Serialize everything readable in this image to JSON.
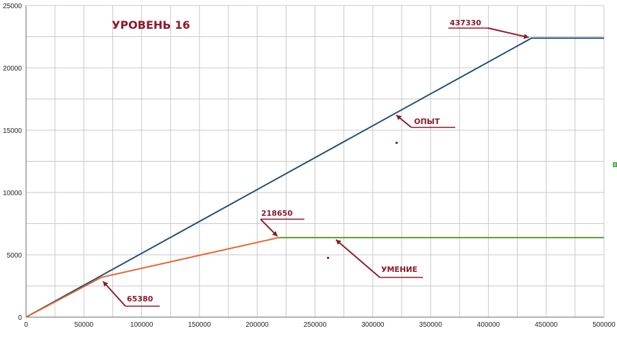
{
  "chart_data": {
    "type": "line",
    "title": "УРОВЕНЬ 16",
    "xlim": [
      0,
      500000
    ],
    "ylim": [
      0,
      25000
    ],
    "x_ticks": [
      0,
      50000,
      100000,
      150000,
      200000,
      250000,
      300000,
      350000,
      400000,
      450000,
      500000
    ],
    "y_ticks": [
      0,
      5000,
      10000,
      15000,
      20000,
      25000
    ],
    "x_tick_labels": [
      "0",
      "50000",
      "100000",
      "150000",
      "200000",
      "250000",
      "300000",
      "350000",
      "400000",
      "450000",
      "500000"
    ],
    "y_tick_labels": [
      "0",
      "5000",
      "10000",
      "15000",
      "20000",
      "25000"
    ],
    "grid": true,
    "series": [
      {
        "name": "ОПЫТ",
        "color": "#1f4e79",
        "x": [
          0,
          437330,
          500000
        ],
        "y": [
          0,
          22380,
          22380
        ]
      },
      {
        "name": "УМЕНИЕ",
        "color": "#e8632b",
        "x": [
          0,
          65380,
          218650
        ],
        "y": [
          0,
          3200,
          6380
        ]
      },
      {
        "name": "",
        "color": "#5a9a2e",
        "x": [
          218650,
          500000
        ],
        "y": [
          6380,
          6380
        ]
      }
    ],
    "annotations": [
      {
        "text": "437330",
        "x": 437330,
        "y": 22380
      },
      {
        "text": "218650",
        "x": 218650,
        "y": 6380
      },
      {
        "text": "65380",
        "x": 65380,
        "y": 3200
      },
      {
        "text": "ОПЫТ",
        "x": 320000,
        "y": 16200
      },
      {
        "text": "УМЕНИЕ",
        "x": 270000,
        "y": 6050
      }
    ]
  }
}
